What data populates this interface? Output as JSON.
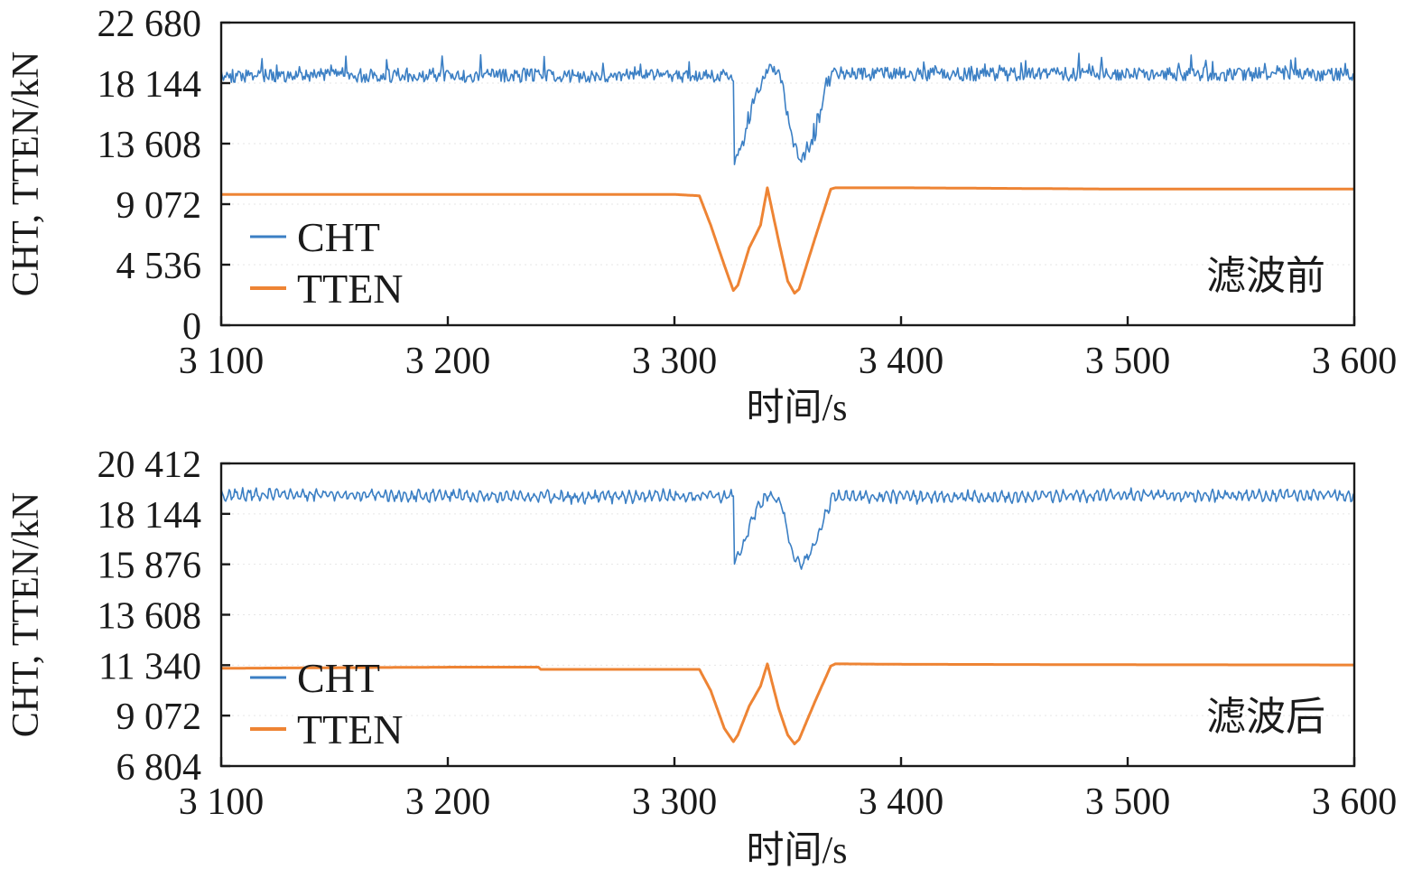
{
  "chart_data": [
    {
      "type": "line",
      "panel_tag": "滤波前",
      "xlabel": "时间/s",
      "ylabel": "CHT, TTEN/kN",
      "xlim": [
        3100,
        3600
      ],
      "ylim": [
        0,
        22680
      ],
      "xticks": [
        3100,
        3200,
        3300,
        3400,
        3500,
        3600
      ],
      "xtick_labels": [
        "3 100",
        "3 200",
        "3 300",
        "3 400",
        "3 500",
        "3 600"
      ],
      "yticks": [
        0,
        4536,
        9072,
        13608,
        18144,
        22680
      ],
      "ytick_labels": [
        "0",
        "4 536",
        "9 072",
        "13 608",
        "18 144",
        "22 680"
      ],
      "legend_position": "lower-left",
      "noise": 1000,
      "series": [
        {
          "name": "CHT",
          "color": "#3b7fc4",
          "x": [
            3100,
            3150,
            3200,
            3250,
            3300,
            3310,
            3326,
            3326.5,
            3329,
            3335,
            3341,
            3347,
            3352,
            3356,
            3361,
            3367,
            3370,
            3400,
            3450,
            3500,
            3550,
            3600
          ],
          "y": [
            18700,
            18700,
            18700,
            18700,
            18700,
            18700,
            18700,
            12200,
            13000,
            16800,
            19300,
            18600,
            13800,
            12300,
            13600,
            17800,
            18900,
            18800,
            18800,
            18800,
            18800,
            18800
          ]
        },
        {
          "name": "TTEN",
          "color": "#ee8434",
          "x": [
            3100,
            3200,
            3300,
            3311,
            3316,
            3322,
            3326,
            3328,
            3333,
            3338,
            3341,
            3346,
            3350,
            3353,
            3355,
            3362,
            3369,
            3371,
            3400,
            3500,
            3600
          ],
          "y": [
            9800,
            9800,
            9800,
            9700,
            7500,
            4500,
            2600,
            3000,
            5800,
            7500,
            10300,
            6300,
            3300,
            2400,
            2700,
            6500,
            10200,
            10300,
            10300,
            10200,
            10200
          ]
        }
      ]
    },
    {
      "type": "line",
      "panel_tag": "滤波后",
      "xlabel": "时间/s",
      "ylabel": "CHT, TTEN/kN",
      "xlim": [
        3100,
        3600
      ],
      "ylim": [
        6804,
        20412
      ],
      "xticks": [
        3100,
        3200,
        3300,
        3400,
        3500,
        3600
      ],
      "xtick_labels": [
        "3 100",
        "3 200",
        "3 300",
        "3 400",
        "3 500",
        "3 600"
      ],
      "yticks": [
        6804,
        9072,
        11340,
        13608,
        15876,
        18144,
        20412
      ],
      "ytick_labels": [
        "6 804",
        "9 072",
        "11 340",
        "13 608",
        "15 876",
        "18 144",
        "20 412"
      ],
      "legend_position": "lower-left",
      "noise": 300,
      "series": [
        {
          "name": "CHT",
          "color": "#3b7fc4",
          "x": [
            3100,
            3150,
            3200,
            3250,
            3300,
            3310,
            3326,
            3326.5,
            3329,
            3335,
            3341,
            3347,
            3352,
            3356,
            3361,
            3367,
            3370,
            3400,
            3450,
            3500,
            3550,
            3600
          ],
          "y": [
            19000,
            19000,
            18950,
            18900,
            18950,
            18950,
            18950,
            16100,
            16300,
            18100,
            19000,
            18700,
            16300,
            15900,
            16500,
            18200,
            18950,
            18900,
            18900,
            19000,
            18950,
            19000
          ]
        },
        {
          "name": "TTEN",
          "color": "#ee8434",
          "x": [
            3100,
            3200,
            3240,
            3241,
            3300,
            3311,
            3316,
            3322,
            3326,
            3328,
            3333,
            3338,
            3341,
            3346,
            3350,
            3353,
            3355,
            3362,
            3369,
            3371,
            3400,
            3500,
            3600
          ],
          "y": [
            11200,
            11250,
            11250,
            11150,
            11150,
            11150,
            10200,
            8500,
            7900,
            8200,
            9500,
            10400,
            11400,
            9400,
            8200,
            7800,
            8000,
            9700,
            11300,
            11400,
            11380,
            11360,
            11350
          ]
        }
      ]
    }
  ]
}
